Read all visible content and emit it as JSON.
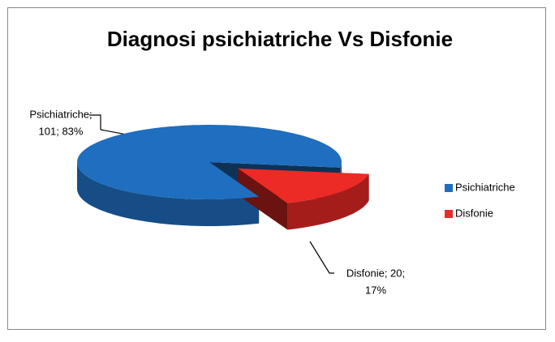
{
  "chart_data": {
    "type": "pie3d",
    "title": "Diagnosi psichiatriche Vs Disfonie",
    "categories": [
      "Psichiatriche",
      "Disfonie"
    ],
    "values": [
      101,
      20
    ],
    "value_labels": [
      [
        "Psichiatriche;",
        "101; 83%"
      ],
      [
        "Disfonie; 20;",
        "17%"
      ]
    ],
    "colors": [
      "#1f6ebf",
      "#ec2a26"
    ],
    "legend": "right"
  }
}
